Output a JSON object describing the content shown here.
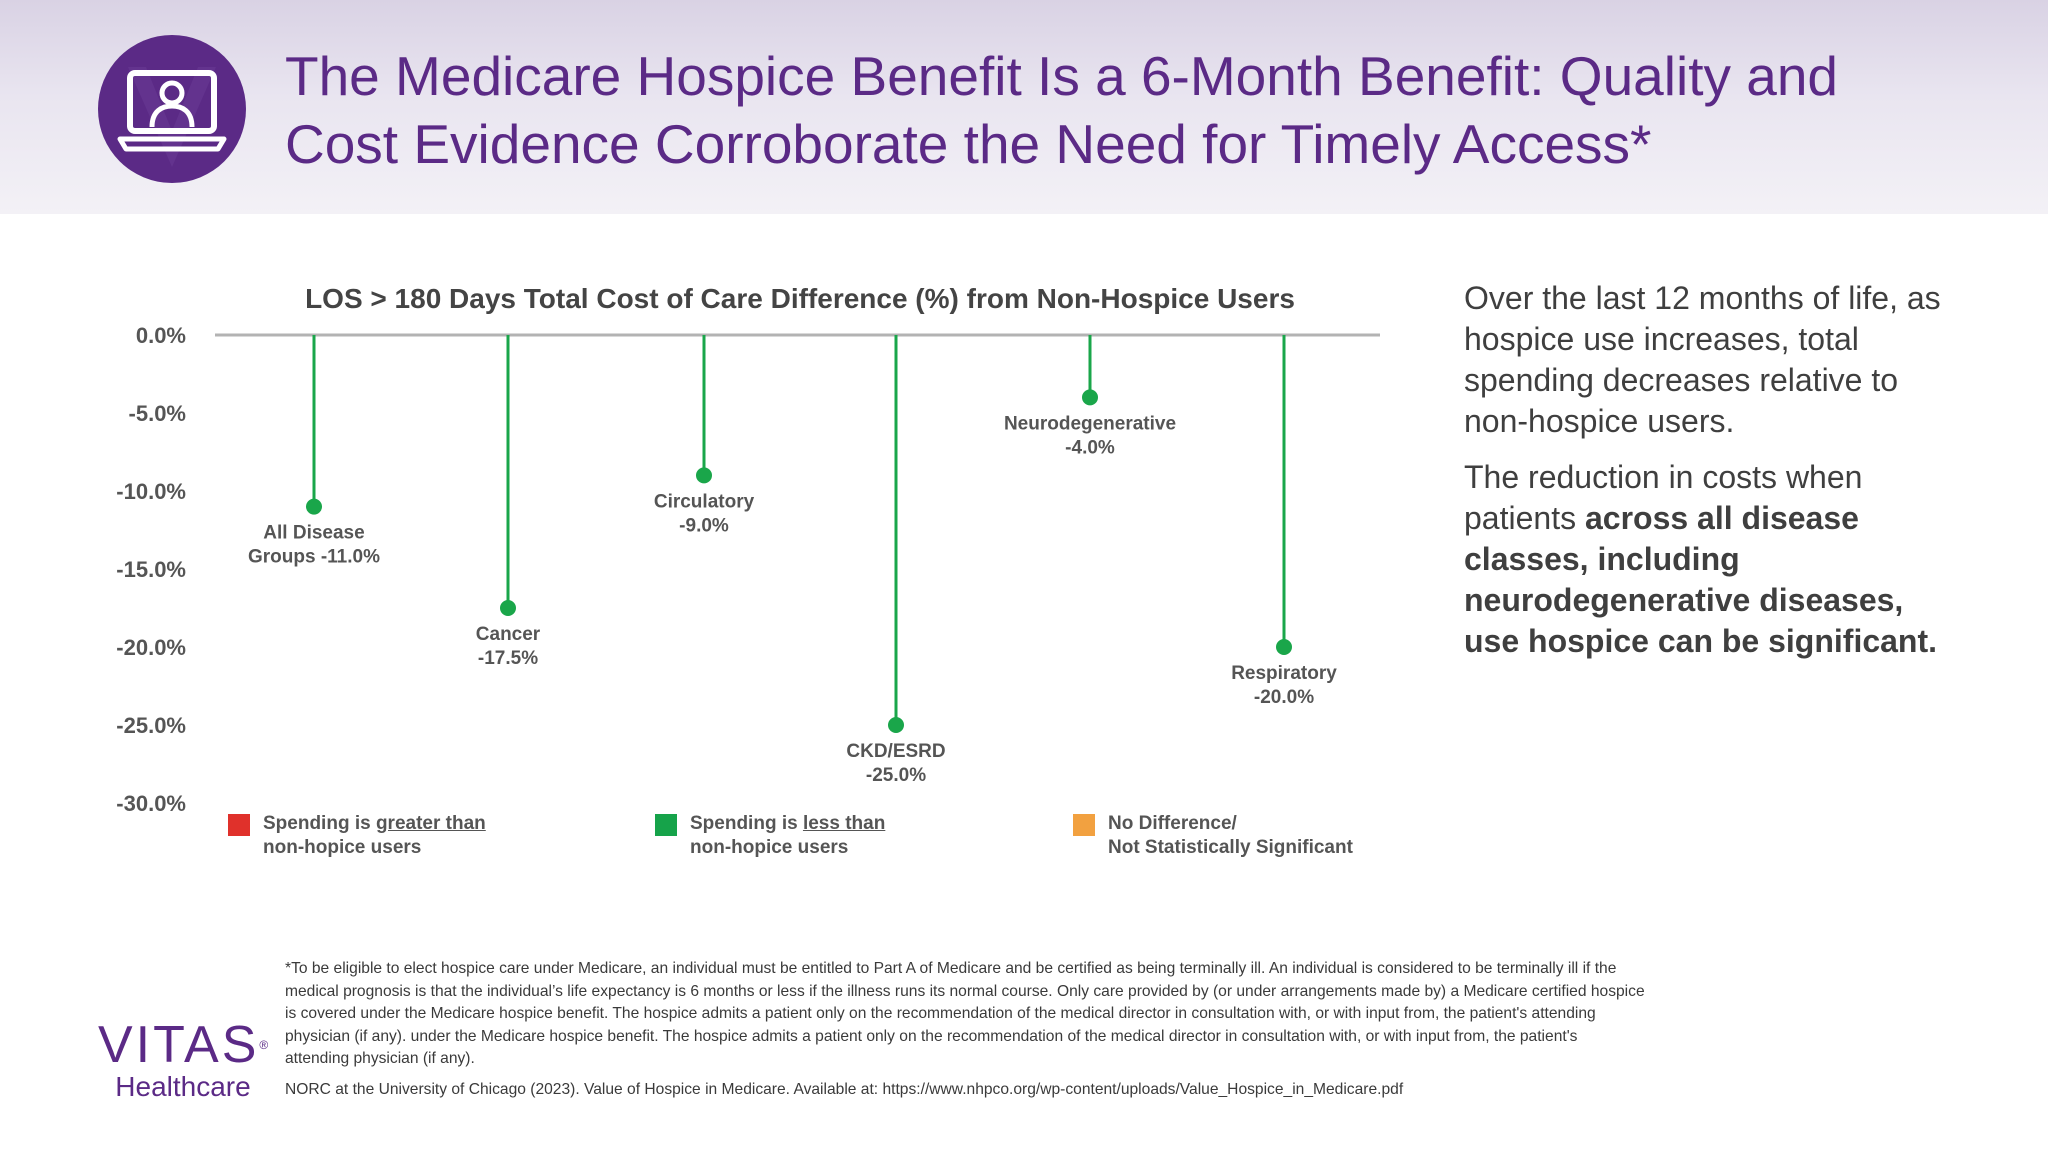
{
  "header": {
    "title_line1": "The Medicare Hospice Benefit Is a 6-Month Benefit: Quality and",
    "title_line2": "Cost Evidence Corroborate the Need for Timely Access*",
    "icon": "laptop-user-icon",
    "brand_color": "#5b2a86"
  },
  "chart_data": {
    "type": "lollipop",
    "title": "LOS > 180 Days Total Cost of Care Difference (%) from Non-Hospice Users",
    "xlabel": "",
    "ylabel": "",
    "ylim": [
      -30,
      0
    ],
    "y_ticks": [
      0,
      -5,
      -10,
      -15,
      -20,
      -25,
      -30
    ],
    "y_tick_labels": [
      "0.0%",
      "-5.0%",
      "-10.0%",
      "-15.0%",
      "-20.0%",
      "-25.0%",
      "-30.0%"
    ],
    "grid": false,
    "categories": [
      "All Disease Groups",
      "Cancer",
      "Circulatory",
      "CKD/ESRD",
      "Neurodegenerative",
      "Respiratory"
    ],
    "values": [
      -11.0,
      -17.5,
      -9.0,
      -25.0,
      -4.0,
      -20.0
    ],
    "point_labels": [
      [
        "All Disease",
        "Groups -11.0%"
      ],
      [
        "Cancer",
        "-17.5%"
      ],
      [
        "Circulatory",
        "-9.0%"
      ],
      [
        "CKD/ESRD",
        "-25.0%"
      ],
      [
        "Neurodegenerative",
        "-4.0%"
      ],
      [
        "Respiratory",
        "-20.0%"
      ]
    ],
    "series_color": "#1aa64a",
    "axis_color": "#b3b3b3",
    "legend": [
      {
        "prefix": "Spending is ",
        "emphasis": "greater than",
        "line2": "non-hopice users",
        "color": "#e0312b"
      },
      {
        "prefix": "Spending is ",
        "emphasis": "less than",
        "line2": "non-hopice users",
        "color": "#16a34a"
      },
      {
        "prefix": "No Difference/",
        "emphasis": "",
        "line2": "Not Statistically Significant",
        "color": "#f2a140"
      }
    ],
    "legend_position": "bottom"
  },
  "side_text": {
    "p1": "Over the last 12 months of life, as hospice use increases, total spending decreases relative to non-hospice users.",
    "p2_plain": "The reduction in costs when patients ",
    "p2_bold": "across all disease classes, including neurodegenerative diseases, use hospice can be significant."
  },
  "footnote": {
    "text": "*To be eligible to elect hospice care under Medicare, an individual must be entitled to Part A of Medicare and be certified as being terminally ill. An individual is considered to be terminally ill if the medical prognosis is that the individual’s life expectancy is 6 months or less if the illness runs its normal course. Only care provided by (or under arrangements made by) a Medicare certified hospice is covered under the Medicare hospice benefit. The hospice admits a patient only on the recommendation of the medical director in consultation with, or with input from, the patient's attending physician (if any). under the Medicare hospice benefit. The hospice admits a patient only on the recommendation of the medical director in consultation with, or with input from, the patient's attending physician (if any).",
    "citation": "NORC at the University of Chicago (2023). Value of Hospice in Medicare. Available at: https://www.nhpco.org/wp-content/uploads/Value_Hospice_in_Medicare.pdf"
  },
  "logo": {
    "word": "VITAS",
    "reg": "®",
    "sub": "Healthcare"
  }
}
